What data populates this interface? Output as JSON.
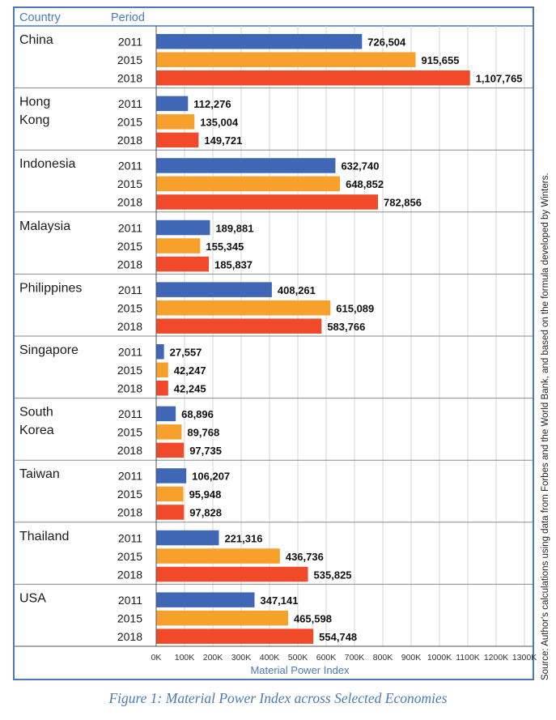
{
  "header": {
    "country_label": "Country",
    "period_label": "Period"
  },
  "chart_data": {
    "type": "bar",
    "orientation": "horizontal",
    "grouped_by": "country",
    "xlabel": "Material Power Index",
    "xlim": [
      0,
      1300000
    ],
    "x_tick_labels": [
      "0K",
      "100K",
      "200K",
      "300K",
      "400K",
      "500K",
      "600K",
      "700K",
      "800K",
      "900K",
      "1000K",
      "1100K",
      "1200K",
      "1300K"
    ],
    "grid": true,
    "periods": [
      "2011",
      "2015",
      "2018"
    ],
    "series_colors": {
      "2011": "#4067b5",
      "2015": "#f7a02c",
      "2018": "#f04a2a"
    },
    "groups": [
      {
        "country": [
          "China"
        ],
        "values": [
          726504,
          915655,
          1107765
        ],
        "labels": [
          "726,504",
          "915,655",
          "1,107,765"
        ]
      },
      {
        "country": [
          "Hong",
          "Kong"
        ],
        "values": [
          112276,
          135004,
          149721
        ],
        "labels": [
          "112,276",
          "135,004",
          "149,721"
        ]
      },
      {
        "country": [
          "Indonesia"
        ],
        "values": [
          632740,
          648852,
          782856
        ],
        "labels": [
          "632,740",
          "648,852",
          "782,856"
        ]
      },
      {
        "country": [
          "Malaysia"
        ],
        "values": [
          189881,
          155345,
          185837
        ],
        "labels": [
          "189,881",
          "155,345",
          "185,837"
        ]
      },
      {
        "country": [
          "Philippines"
        ],
        "values": [
          408261,
          615089,
          583766
        ],
        "labels": [
          "408,261",
          "615,089",
          "583,766"
        ]
      },
      {
        "country": [
          "Singapore"
        ],
        "values": [
          27557,
          42247,
          42245
        ],
        "labels": [
          "27,557",
          "42,247",
          "42,245"
        ]
      },
      {
        "country": [
          "South",
          "Korea"
        ],
        "values": [
          68896,
          89768,
          97735
        ],
        "labels": [
          "68,896",
          "89,768",
          "97,735"
        ]
      },
      {
        "country": [
          "Taiwan"
        ],
        "values": [
          106207,
          95948,
          97828
        ],
        "labels": [
          "106,207",
          "95,948",
          "97,828"
        ]
      },
      {
        "country": [
          "Thailand"
        ],
        "values": [
          221316,
          436736,
          535825
        ],
        "labels": [
          "221,316",
          "436,736",
          "535,825"
        ]
      },
      {
        "country": [
          "USA"
        ],
        "values": [
          347141,
          465598,
          554748
        ],
        "labels": [
          "347,141",
          "465,598",
          "554,748"
        ]
      }
    ]
  },
  "source": "Source: Author's calculations using data from Forbes and the World Bank, and based on the formula developed by Winters.",
  "caption": "Figure 1: Material Power Index across Selected Economies"
}
